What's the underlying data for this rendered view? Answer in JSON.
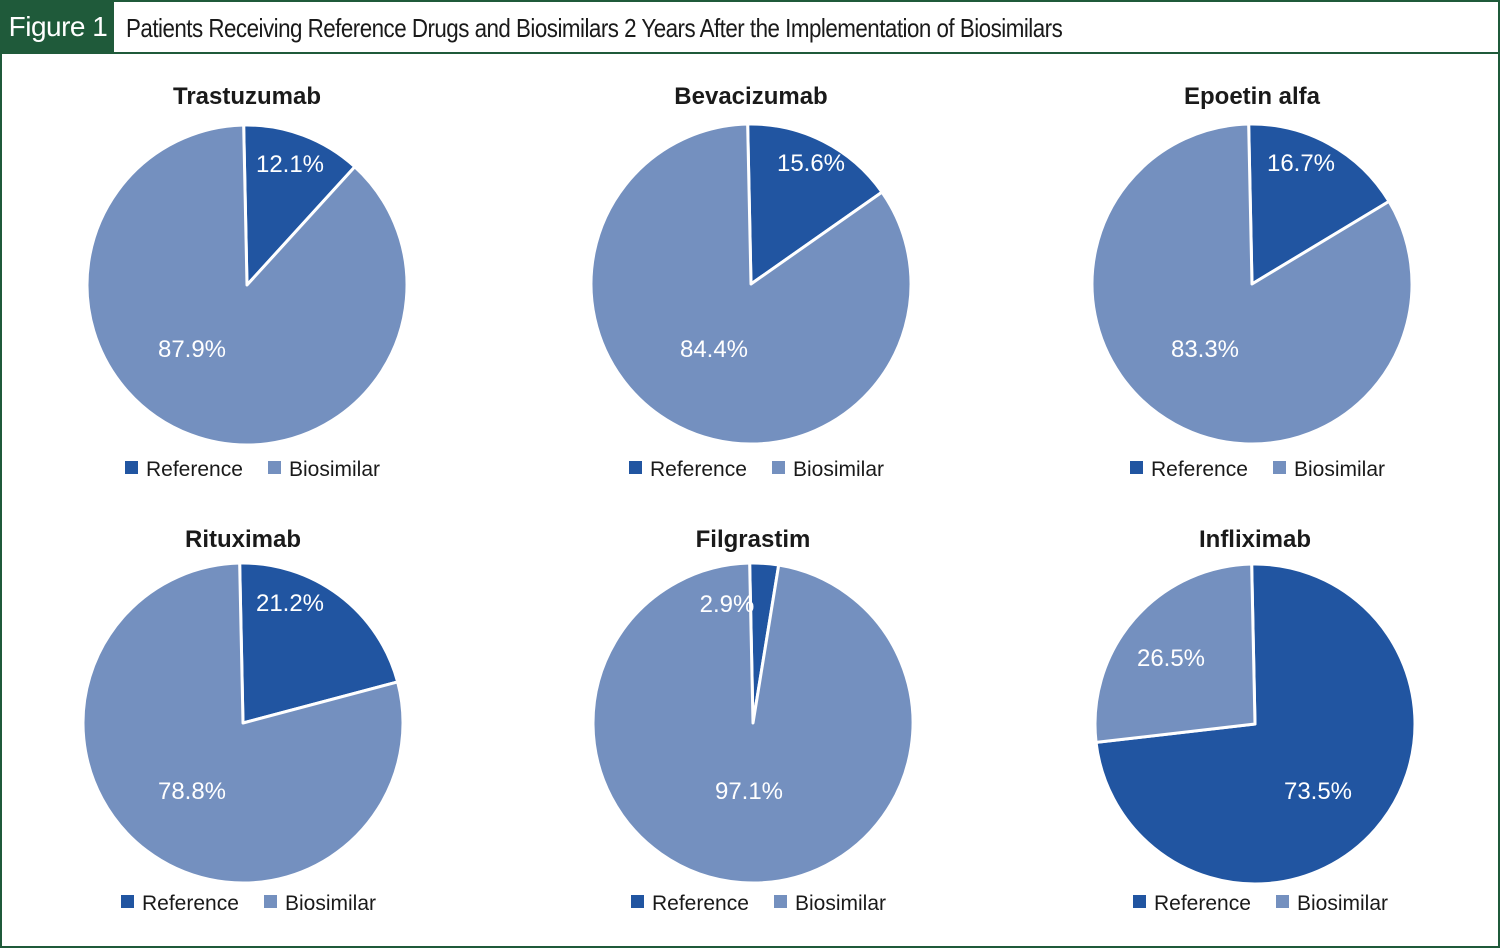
{
  "header": {
    "figure_label": "Figure 1",
    "title": "Patients Receiving Reference Drugs and Biosimilars 2 Years After the Implementation of Biosimilars"
  },
  "colors": {
    "reference": "#2155a1",
    "biosimilar": "#7490bf",
    "frame": "#1f5a3a"
  },
  "chart_data": [
    {
      "type": "pie",
      "title": "Trastuzumab",
      "labels": [
        "Reference",
        "Biosimilar"
      ],
      "values": [
        12.1,
        87.9
      ],
      "value_labels": [
        "12.1%",
        "87.9%"
      ],
      "legend": [
        "Reference",
        "Biosimilar"
      ]
    },
    {
      "type": "pie",
      "title": "Bevacizumab",
      "labels": [
        "Reference",
        "Biosimilar"
      ],
      "values": [
        15.6,
        84.4
      ],
      "value_labels": [
        "15.6%",
        "84.4%"
      ],
      "legend": [
        "Reference",
        "Biosimilar"
      ]
    },
    {
      "type": "pie",
      "title": "Epoetin alfa",
      "labels": [
        "Reference",
        "Biosimilar"
      ],
      "values": [
        16.7,
        83.3
      ],
      "value_labels": [
        "16.7%",
        "83.3%"
      ],
      "legend": [
        "Reference",
        "Biosimilar"
      ]
    },
    {
      "type": "pie",
      "title": "Rituximab",
      "labels": [
        "Reference",
        "Biosimilar"
      ],
      "values": [
        21.2,
        78.8
      ],
      "value_labels": [
        "21.2%",
        "78.8%"
      ],
      "legend": [
        "Reference",
        "Biosimilar"
      ]
    },
    {
      "type": "pie",
      "title": "Filgrastim",
      "labels": [
        "Reference",
        "Biosimilar"
      ],
      "values": [
        2.9,
        97.1
      ],
      "value_labels": [
        "2.9%",
        "97.1%"
      ],
      "legend": [
        "Reference",
        "Biosimilar"
      ]
    },
    {
      "type": "pie",
      "title": "Infliximab",
      "labels": [
        "Reference",
        "Biosimilar"
      ],
      "values": [
        73.5,
        26.5
      ],
      "value_labels": [
        "73.5%",
        "26.5%"
      ],
      "legend": [
        "Reference",
        "Biosimilar"
      ]
    }
  ]
}
